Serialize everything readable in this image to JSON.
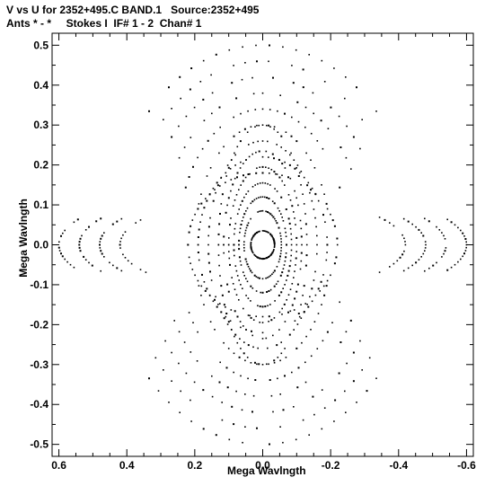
{
  "header": {
    "title_line1": "V vs U for 2352+495.C BAND.1   Source:2352+495",
    "title_line2": "Ants * - *     Stokes I  IF# 1 - 2  Chan# 1"
  },
  "chart_data": {
    "type": "scatter",
    "title": "V vs U for 2352+495.C BAND.1   Source:2352+495",
    "subtitle": "Ants * - *     Stokes I  IF# 1 - 2  Chan# 1",
    "xlabel": "Mega Wavlngth",
    "ylabel": "Mega Wavlngth",
    "xlim": [
      0.62,
      -0.62
    ],
    "ylim": [
      -0.53,
      0.53
    ],
    "x_reversed": true,
    "grid": false,
    "x_ticks": [
      {
        "value": 0.6,
        "label": "0.6"
      },
      {
        "value": 0.4,
        "label": "0.4"
      },
      {
        "value": 0.2,
        "label": "0.2"
      },
      {
        "value": 0.0,
        "label": "0.0"
      },
      {
        "value": -0.2,
        "label": "-0.2"
      },
      {
        "value": -0.4,
        "label": "-0.4"
      },
      {
        "value": -0.6,
        "label": "-0.6"
      }
    ],
    "y_ticks": [
      {
        "value": 0.5,
        "label": "0.5"
      },
      {
        "value": 0.4,
        "label": "0.4"
      },
      {
        "value": 0.3,
        "label": "0.3"
      },
      {
        "value": 0.2,
        "label": "0.2"
      },
      {
        "value": 0.1,
        "label": "0.1"
      },
      {
        "value": 0.0,
        "label": "0.0"
      },
      {
        "value": -0.1,
        "label": "-0.1"
      },
      {
        "value": -0.2,
        "label": "-0.2"
      },
      {
        "value": -0.3,
        "label": "-0.3"
      },
      {
        "value": -0.4,
        "label": "-0.4"
      },
      {
        "value": -0.5,
        "label": "-0.5"
      }
    ],
    "point_color": "#000000",
    "series": [
      {
        "values_description_free": true,
        "tracks": [
          {
            "a": 0.035,
            "b": 0.035,
            "t0": 0,
            "t1": 360
          },
          {
            "a": 0.055,
            "b": 0.085,
            "t0": 0,
            "t1": 360
          },
          {
            "a": 0.07,
            "b": 0.12,
            "t0": 0,
            "t1": 360
          },
          {
            "a": 0.085,
            "b": 0.155,
            "t0": 0,
            "t1": 360
          },
          {
            "a": 0.1,
            "b": 0.195,
            "t0": 0,
            "t1": 360
          },
          {
            "a": 0.115,
            "b": 0.235,
            "t0": 0,
            "t1": 360
          },
          {
            "a": 0.13,
            "b": 0.3,
            "t0": 0,
            "t1": 360
          },
          {
            "a": 0.16,
            "b": 0.26,
            "t0": 0,
            "t1": 360
          },
          {
            "a": 0.19,
            "b": 0.22,
            "t0": 0,
            "t1": 360
          },
          {
            "a": 0.22,
            "b": 0.18,
            "t0": 0,
            "t1": 360
          },
          {
            "a": 0.2,
            "b": 0.3,
            "t0": 20,
            "t1": 160
          },
          {
            "a": 0.2,
            "b": 0.3,
            "t0": 200,
            "t1": 340
          },
          {
            "a": 0.25,
            "b": 0.34,
            "t0": 25,
            "t1": 155
          },
          {
            "a": 0.25,
            "b": 0.34,
            "t0": 205,
            "t1": 335
          },
          {
            "a": 0.3,
            "b": 0.38,
            "t0": 30,
            "t1": 150
          },
          {
            "a": 0.3,
            "b": 0.38,
            "t0": 210,
            "t1": 330
          },
          {
            "a": 0.35,
            "b": 0.42,
            "t0": 35,
            "t1": 145
          },
          {
            "a": 0.35,
            "b": 0.42,
            "t0": 215,
            "t1": 325
          },
          {
            "a": 0.4,
            "b": 0.46,
            "t0": 38,
            "t1": 142
          },
          {
            "a": 0.4,
            "b": 0.46,
            "t0": 218,
            "t1": 322
          },
          {
            "a": 0.45,
            "b": 0.5,
            "t0": 42,
            "t1": 138
          },
          {
            "a": 0.45,
            "b": 0.5,
            "t0": 222,
            "t1": 318
          },
          {
            "a": 0.42,
            "b": 0.12,
            "t0": -35,
            "t1": 35
          },
          {
            "a": 0.42,
            "b": 0.12,
            "t0": 145,
            "t1": 215
          },
          {
            "a": 0.48,
            "b": 0.13,
            "t0": -30,
            "t1": 30
          },
          {
            "a": 0.48,
            "b": 0.13,
            "t0": 150,
            "t1": 210
          },
          {
            "a": 0.54,
            "b": 0.14,
            "t0": -28,
            "t1": 28
          },
          {
            "a": 0.54,
            "b": 0.14,
            "t0": 152,
            "t1": 208
          },
          {
            "a": 0.6,
            "b": 0.15,
            "t0": -25,
            "t1": 25
          },
          {
            "a": 0.6,
            "b": 0.15,
            "t0": 155,
            "t1": 205
          }
        ]
      }
    ]
  }
}
